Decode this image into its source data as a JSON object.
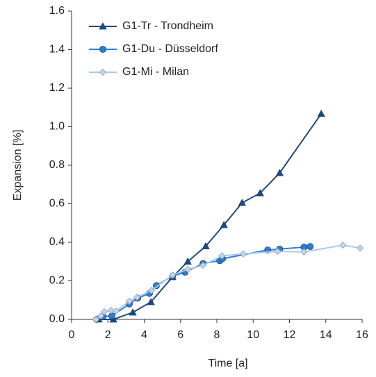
{
  "chart_data": {
    "type": "line",
    "xlabel": "Time [a]",
    "ylabel": "Expansion [%]",
    "xlim": [
      0,
      16
    ],
    "xticks": [
      0,
      2,
      4,
      6,
      8,
      10,
      12,
      14,
      16
    ],
    "ylim": [
      0,
      1.6
    ],
    "yticks": [
      {
        "value": 0,
        "label": "0.0"
      },
      0.2,
      0.4,
      0.6,
      0.8,
      {
        "value": 1,
        "label": "1.0"
      },
      1.2,
      1.4,
      1.6
    ],
    "legend": "top-left",
    "series": [
      {
        "name": "G1-Tr - Trondheim",
        "color": "#1c4a80",
        "marker": "triangle",
        "x": [
          1.49,
          2.3,
          3.37,
          4.37,
          5.56,
          6.4,
          7.39,
          8.39,
          9.39,
          10.38,
          11.46,
          13.75
        ],
        "values": [
          0,
          0,
          0.036,
          0.09,
          0.22,
          0.3,
          0.38,
          0.49,
          0.605,
          0.655,
          0.76,
          1.067
        ]
      },
      {
        "name": "G1-Du - Düsseldorf",
        "color": "#2a7fd4",
        "marker": "circle",
        "x": [
          1.38,
          1.72,
          2.22,
          3.18,
          3.64,
          4.29,
          4.67,
          5.56,
          6.25,
          7.24,
          8.16,
          8.31,
          10.8,
          11.46,
          12.8,
          13.14
        ],
        "values": [
          0,
          0.015,
          0.018,
          0.08,
          0.11,
          0.135,
          0.175,
          0.225,
          0.245,
          0.29,
          0.305,
          0.315,
          0.36,
          0.365,
          0.375,
          0.378
        ]
      },
      {
        "name": "G1-Mi - Milan",
        "color": "#a9c9ec",
        "marker": "diamond",
        "x": [
          1.34,
          1.61,
          1.8,
          2.18,
          2.45,
          3.18,
          3.6,
          4.4,
          5.56,
          6.4,
          7.24,
          8.28,
          9.46,
          11.34,
          12.8,
          14.94,
          15.9
        ],
        "values": [
          0,
          0.018,
          0.04,
          0.047,
          0.043,
          0.094,
          0.115,
          0.15,
          0.23,
          0.26,
          0.28,
          0.33,
          0.34,
          0.353,
          0.35,
          0.385,
          0.37
        ]
      }
    ]
  }
}
